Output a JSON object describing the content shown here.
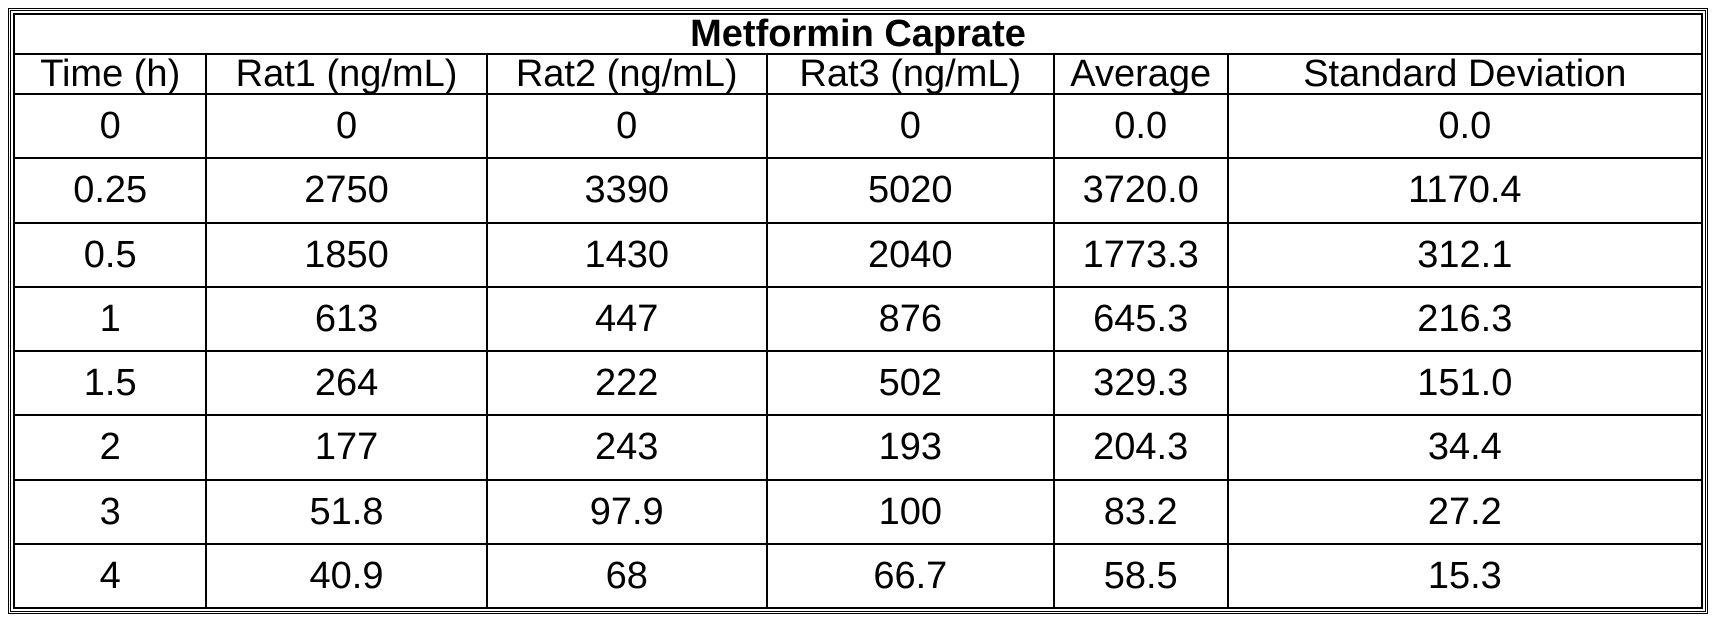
{
  "table": {
    "title": "Metformin Caprate",
    "columns": [
      "Time (h)",
      "Rat1 (ng/mL)",
      "Rat2 (ng/mL)",
      "Rat3 (ng/mL)",
      "Average",
      "Standard Deviation"
    ],
    "rows": [
      [
        "0",
        "0",
        "0",
        "0",
        "0.0",
        "0.0"
      ],
      [
        "0.25",
        "2750",
        "3390",
        "5020",
        "3720.0",
        "1170.4"
      ],
      [
        "0.5",
        "1850",
        "1430",
        "2040",
        "1773.3",
        "312.1"
      ],
      [
        "1",
        "613",
        "447",
        "876",
        "645.3",
        "216.3"
      ],
      [
        "1.5",
        "264",
        "222",
        "502",
        "329.3",
        "151.0"
      ],
      [
        "2",
        "177",
        "243",
        "193",
        "204.3",
        "34.4"
      ],
      [
        "3",
        "51.8",
        "97.9",
        "100",
        "83.2",
        "27.2"
      ],
      [
        "4",
        "40.9",
        "68",
        "66.7",
        "58.5",
        "15.3"
      ]
    ]
  }
}
